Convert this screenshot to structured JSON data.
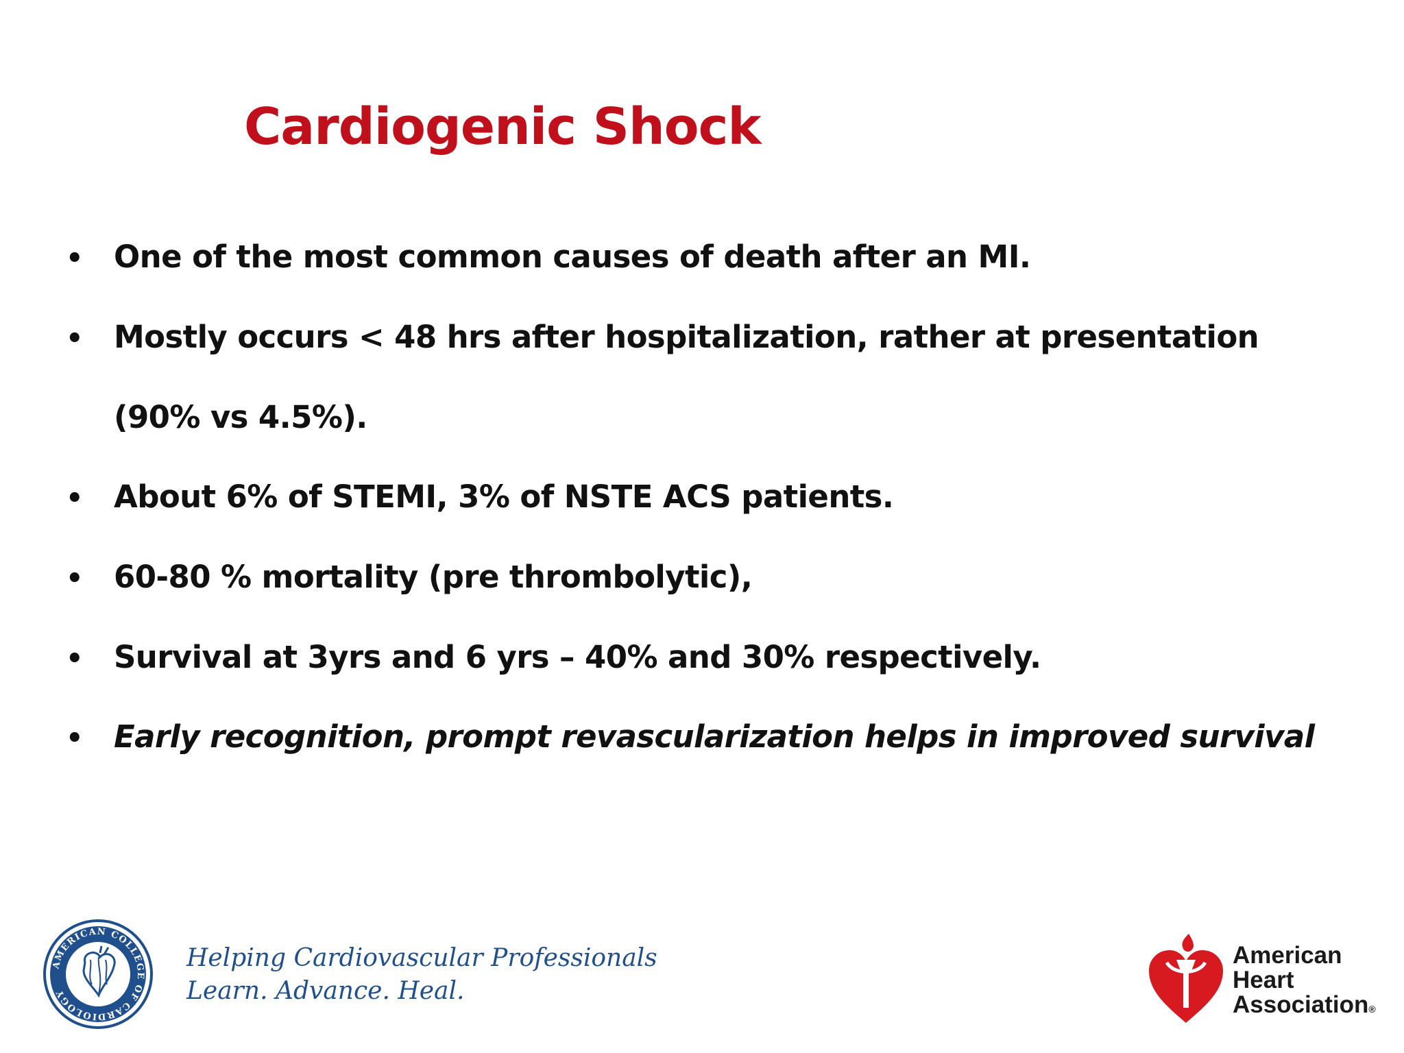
{
  "slide": {
    "title": "Cardiogenic Shock",
    "bullets": [
      {
        "text": "One of the most common causes of death after an MI."
      },
      {
        "text": "Mostly occurs  < 48 hrs after hospitalization, rather  at presentation",
        "continuation": "(90% vs 4.5%)."
      },
      {
        "text": "About 6% of  STEMI, 3% of NSTE ACS patients."
      },
      {
        "text": "60-80 % mortality  (pre thrombolytic),"
      },
      {
        "text": "Survival at 3yrs and 6 yrs – 40% and 30% respectively."
      },
      {
        "text": "Early recognition, prompt revascularization  helps in improved survival",
        "italic": true
      }
    ],
    "bullet_glyph": "•",
    "title_color": "#c0101c"
  },
  "footer": {
    "acc": {
      "seal_text": "AMERICAN COLLEGE OF CARDIOLOGY",
      "tagline_1": "Helping Cardiovascular Professionals",
      "tagline_2": "Learn. Advance. Heal.",
      "color": "#1f4f8c"
    },
    "aha": {
      "line_1": "American",
      "line_2": "Heart",
      "line_3": "Association",
      "reg_mark": "®",
      "heart_color": "#d71920"
    }
  }
}
